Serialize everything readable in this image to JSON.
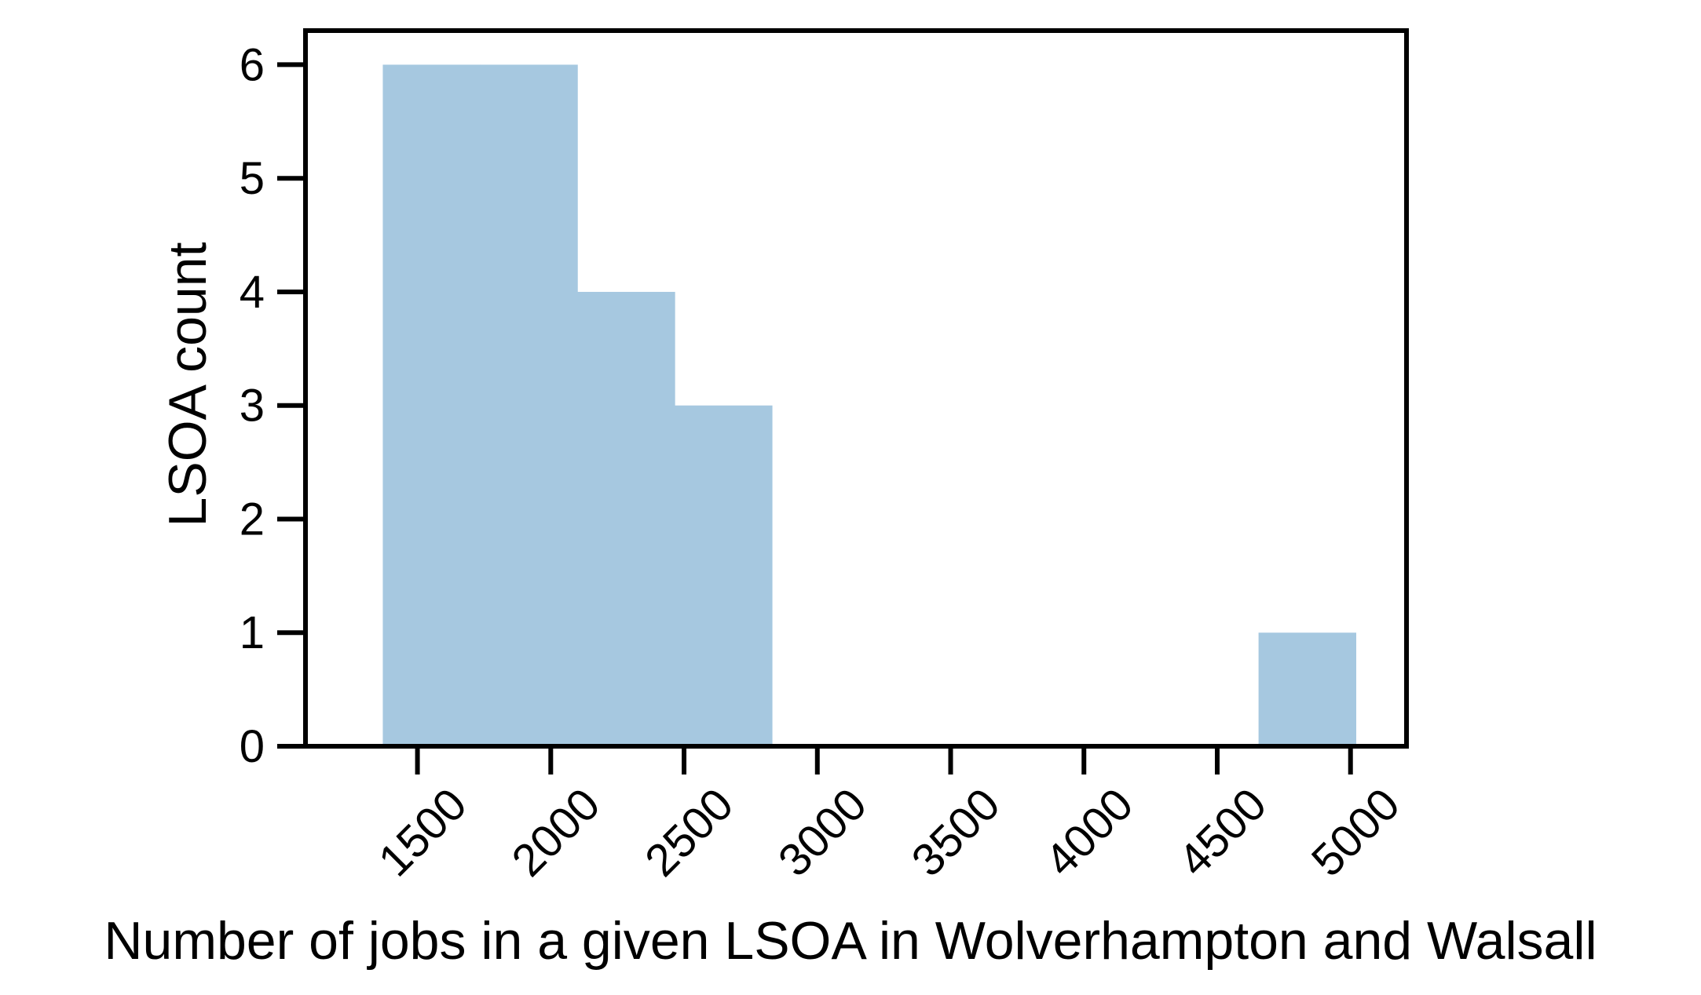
{
  "chart_data": {
    "type": "bar",
    "title": "",
    "xlabel": "Number of jobs in a given LSOA in Wolverhampton and Walsall",
    "ylabel": "LSOA count",
    "xlim": [
      1080,
      5210
    ],
    "ylim": [
      0,
      6.3
    ],
    "xticks": [
      1500,
      2000,
      2500,
      3000,
      3500,
      4000,
      4500,
      5000
    ],
    "xtick_labels": [
      "1500",
      "2000",
      "2500",
      "3000",
      "3500",
      "4000",
      "4500",
      "5000"
    ],
    "yticks": [
      0,
      1,
      2,
      3,
      4,
      5,
      6
    ],
    "ytick_labels": [
      "0",
      "1",
      "2",
      "3",
      "4",
      "5",
      "6"
    ],
    "grid": false,
    "bar_color": "#a6c8e0",
    "bins": [
      {
        "x0": 1370,
        "x1": 1735,
        "count": 6
      },
      {
        "x0": 1735,
        "x1": 2100,
        "count": 6
      },
      {
        "x0": 2100,
        "x1": 2465,
        "count": 4
      },
      {
        "x0": 2465,
        "x1": 2830,
        "count": 3
      },
      {
        "x0": 2830,
        "x1": 3195,
        "count": 0
      },
      {
        "x0": 3195,
        "x1": 3560,
        "count": 0
      },
      {
        "x0": 3560,
        "x1": 3925,
        "count": 0
      },
      {
        "x0": 3925,
        "x1": 4290,
        "count": 0
      },
      {
        "x0": 4290,
        "x1": 4655,
        "count": 0
      },
      {
        "x0": 4655,
        "x1": 5020,
        "count": 1
      }
    ]
  }
}
